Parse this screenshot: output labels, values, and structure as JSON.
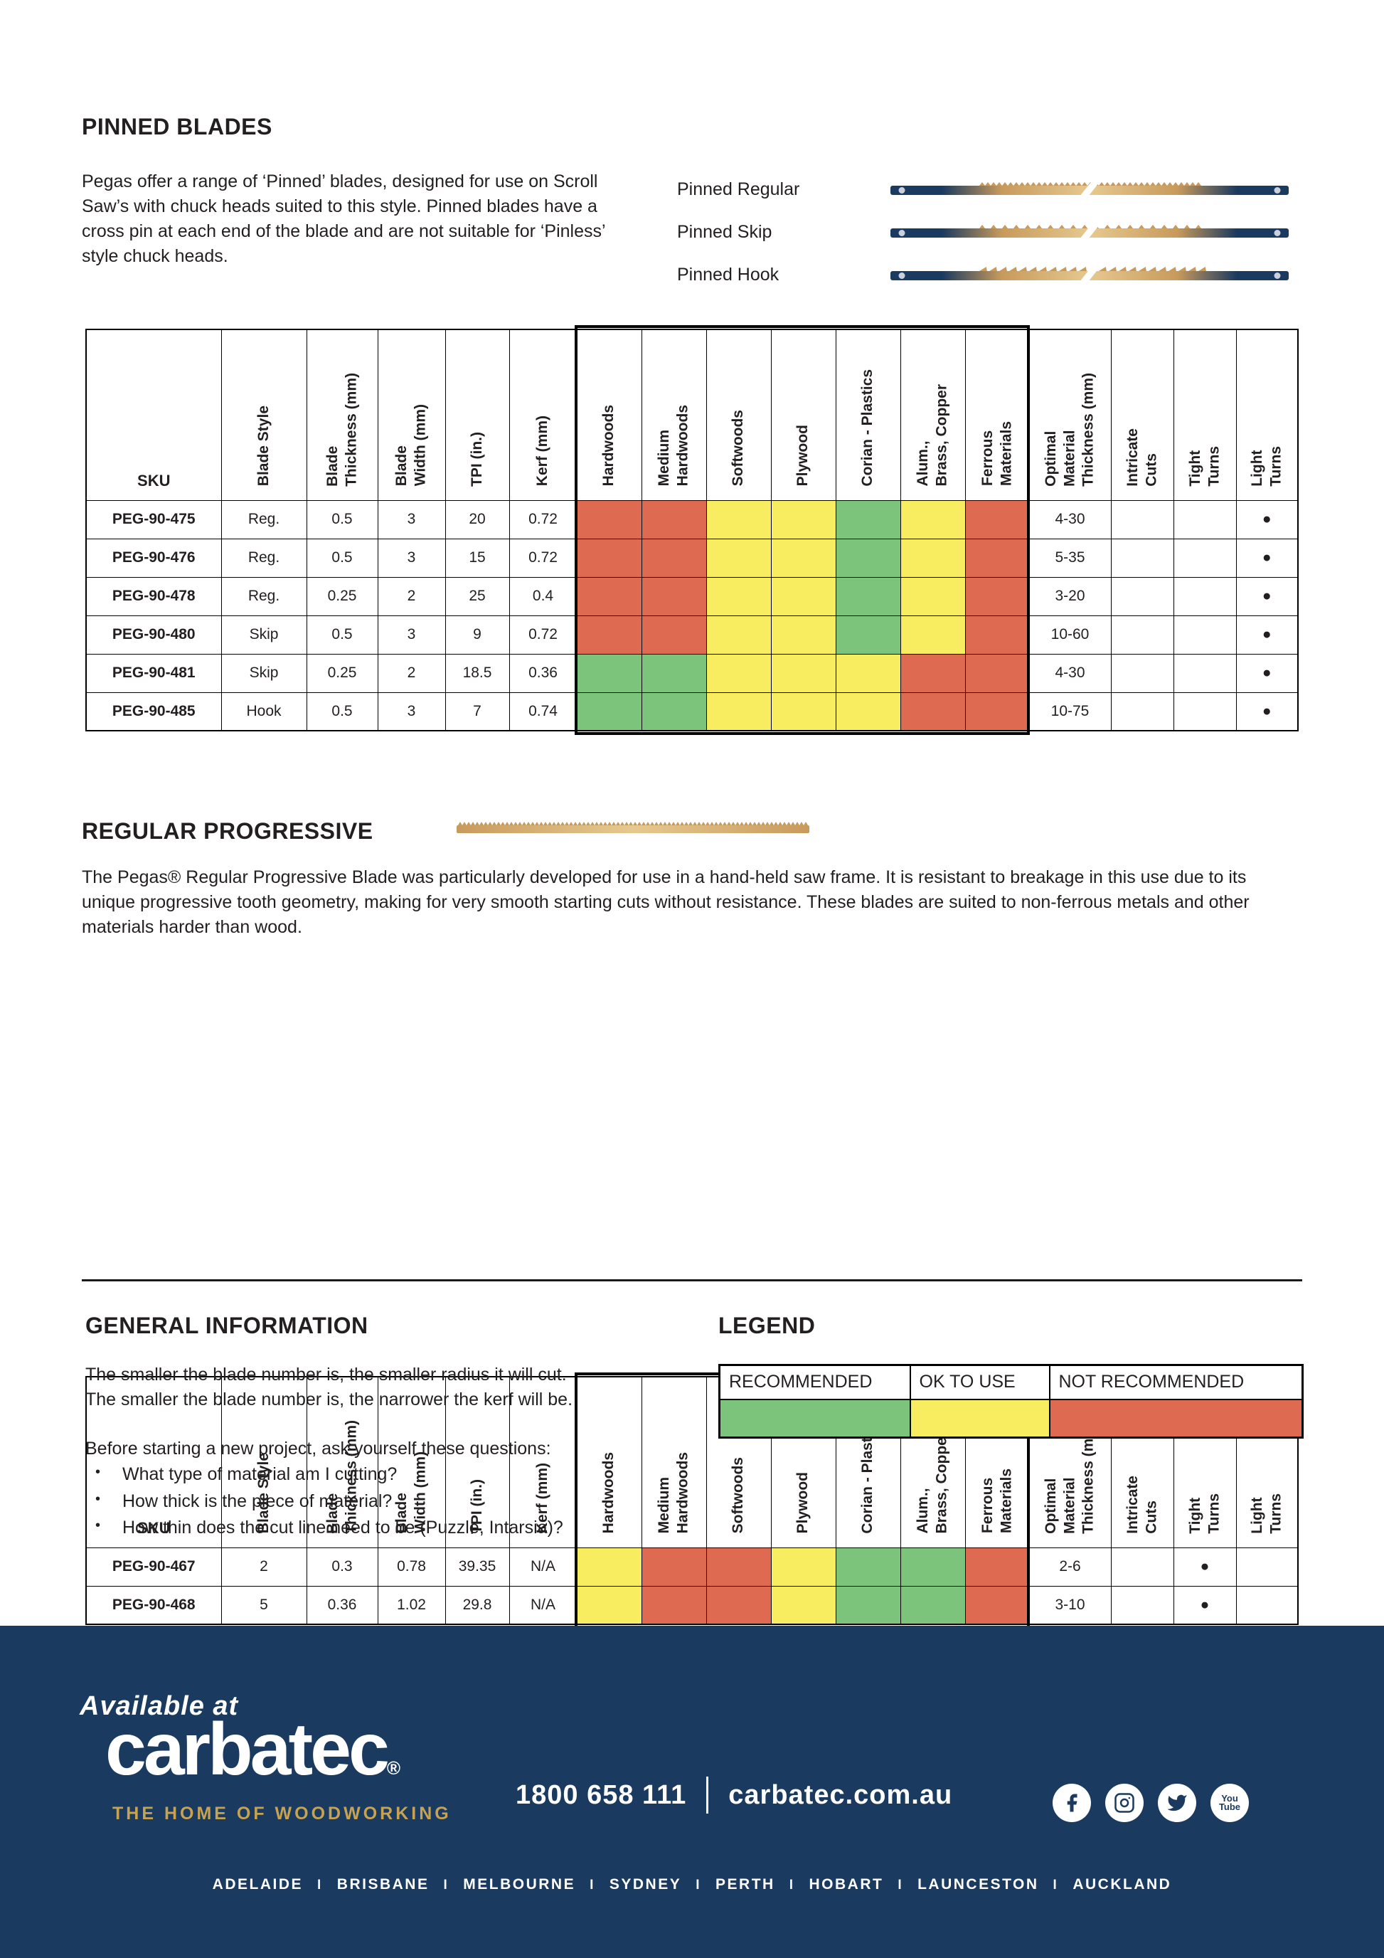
{
  "colors": {
    "green": "#7CC47C",
    "yellow": "#F8EC60",
    "red": "#DE6A51",
    "navy": "#1B3A5F",
    "gold": "#C5A353",
    "blade_gold": "#C89A5C",
    "blade_gold_light": "#E6C98F"
  },
  "pinned_section": {
    "title": "PINNED BLADES",
    "description": "Pegas offer a range of ‘Pinned’ blades, designed for use on Scroll Saw’s with chuck heads suited to this style. Pinned blades have a cross pin at each end of the blade and are not suitable for ‘Pinless’ style chuck heads.",
    "blades": [
      {
        "label": "Pinned Regular",
        "type": "regular"
      },
      {
        "label": "Pinned Skip",
        "type": "skip"
      },
      {
        "label": "Pinned Hook",
        "type": "hook"
      }
    ]
  },
  "table_headers": {
    "sku": "SKU",
    "columns": [
      "Blade Style",
      "Blade\nThickness (mm)",
      "Blade\nWidth (mm)",
      "TPI (in.)",
      "Kerf (mm)"
    ],
    "materials": [
      "Hardwoods",
      "Medium\nHardwoods",
      "Softwoods",
      "Plywood",
      "Corian  - Plastics",
      "Alum.,\nBrass, Copper",
      "Ferrous\nMaterials"
    ],
    "tail": [
      "Optimal\nMaterial\nThickness (mm)",
      "Intricate\nCuts",
      "Tight\nTurns",
      "Light\nTurns"
    ]
  },
  "pinned_table": {
    "rows": [
      {
        "sku": "PEG-90-475",
        "specs": [
          "Reg.",
          "0.5",
          "3",
          "20",
          "0.72"
        ],
        "materials": [
          "R",
          "R",
          "Y",
          "Y",
          "G",
          "Y",
          "R"
        ],
        "optimal": "4-30",
        "cuts": [
          "",
          "",
          "●"
        ]
      },
      {
        "sku": "PEG-90-476",
        "specs": [
          "Reg.",
          "0.5",
          "3",
          "15",
          "0.72"
        ],
        "materials": [
          "R",
          "R",
          "Y",
          "Y",
          "G",
          "Y",
          "R"
        ],
        "optimal": "5-35",
        "cuts": [
          "",
          "",
          "●"
        ]
      },
      {
        "sku": "PEG-90-478",
        "specs": [
          "Reg.",
          "0.25",
          "2",
          "25",
          "0.4"
        ],
        "materials": [
          "R",
          "R",
          "Y",
          "Y",
          "G",
          "Y",
          "R"
        ],
        "optimal": "3-20",
        "cuts": [
          "",
          "",
          "●"
        ]
      },
      {
        "sku": "PEG-90-480",
        "specs": [
          "Skip",
          "0.5",
          "3",
          "9",
          "0.72"
        ],
        "materials": [
          "R",
          "R",
          "Y",
          "Y",
          "G",
          "Y",
          "R"
        ],
        "optimal": "10-60",
        "cuts": [
          "",
          "",
          "●"
        ]
      },
      {
        "sku": "PEG-90-481",
        "specs": [
          "Skip",
          "0.25",
          "2",
          "18.5",
          "0.36"
        ],
        "materials": [
          "G",
          "G",
          "Y",
          "Y",
          "Y",
          "R",
          "R"
        ],
        "optimal": "4-30",
        "cuts": [
          "",
          "",
          "●"
        ]
      },
      {
        "sku": "PEG-90-485",
        "specs": [
          "Hook",
          "0.5",
          "3",
          "7",
          "0.74"
        ],
        "materials": [
          "G",
          "G",
          "Y",
          "Y",
          "Y",
          "R",
          "R"
        ],
        "optimal": "10-75",
        "cuts": [
          "",
          "",
          "●"
        ]
      }
    ]
  },
  "progressive_section": {
    "title": "REGULAR PROGRESSIVE",
    "description": "The Pegas® Regular Progressive Blade was particularly developed for use in a hand-held saw frame. It is resistant to breakage in this use due to its unique progressive tooth geometry, making for very smooth starting cuts without resistance. These blades are suited to non-ferrous metals and other materials harder than wood."
  },
  "progressive_table": {
    "rows": [
      {
        "sku": "PEG-90-467",
        "specs": [
          "2",
          "0.3",
          "0.78",
          "39.35",
          "N/A"
        ],
        "materials": [
          "Y",
          "R",
          "R",
          "Y",
          "G",
          "G",
          "R"
        ],
        "optimal": "2-6",
        "cuts": [
          "",
          "●",
          ""
        ]
      },
      {
        "sku": "PEG-90-468",
        "specs": [
          "5",
          "0.36",
          "1.02",
          "29.8",
          "N/A"
        ],
        "materials": [
          "Y",
          "R",
          "R",
          "Y",
          "G",
          "G",
          "R"
        ],
        "optimal": "3-10",
        "cuts": [
          "",
          "●",
          ""
        ]
      }
    ]
  },
  "general_info": {
    "title": "GENERAL INFORMATION",
    "lines": [
      "The smaller the blade number is, the smaller radius it will cut.",
      "The smaller the blade number is, the narrower the kerf will be."
    ],
    "prompt": "Before starting a new project, ask yourself these questions:",
    "bullets": [
      "What type of material am I cutting?",
      "How thick is the piece of material?",
      "How thin does the cut line need to be (Puzzle, Intarsia)?"
    ],
    "bullet_char": "•"
  },
  "legend": {
    "title": "LEGEND",
    "items": [
      {
        "label": "RECOMMENDED",
        "color": "G"
      },
      {
        "label": "OK TO USE",
        "color": "Y"
      },
      {
        "label": "NOT RECOMMENDED",
        "color": "R"
      }
    ]
  },
  "footer": {
    "available_at": "Available at",
    "brand": "carbatec",
    "brand_reg": "®",
    "tagline": "THE HOME OF WOODWORKING",
    "phone": "1800 658 111",
    "website": "carbatec.com.au",
    "social_icons": [
      "facebook",
      "instagram",
      "twitter",
      "youtube"
    ],
    "youtube_lines": [
      "You",
      "Tube"
    ],
    "cities": [
      "ADELAIDE",
      "BRISBANE",
      "MELBOURNE",
      "SYDNEY",
      "PERTH",
      "HOBART",
      "LAUNCESTON",
      "AUCKLAND"
    ],
    "city_separator": "I"
  }
}
